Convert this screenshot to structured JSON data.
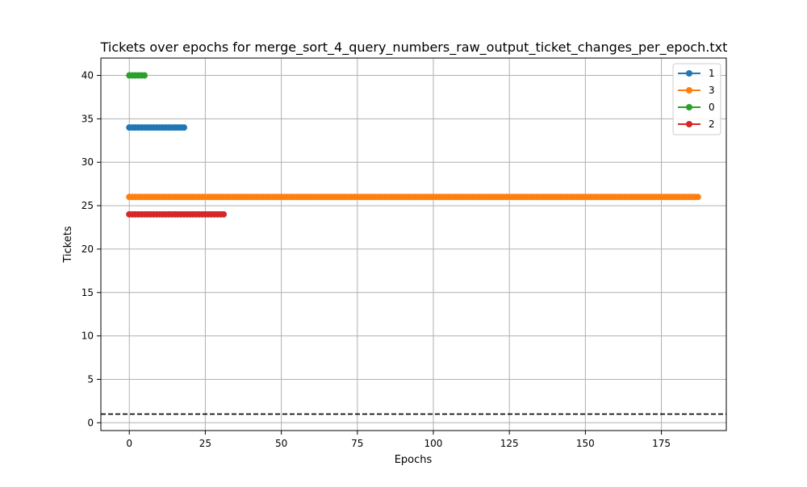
{
  "chart_data": {
    "type": "line",
    "title": "Tickets over epochs for merge_sort_4_query_numbers_raw_output_ticket_changes_per_epoch.txt",
    "xlabel": "Epochs",
    "ylabel": "Tickets",
    "xlim": [
      -9.35,
      196.35
    ],
    "ylim": [
      -0.9,
      42
    ],
    "xticks": [
      0,
      25,
      50,
      75,
      100,
      125,
      150,
      175
    ],
    "yticks": [
      0,
      5,
      10,
      15,
      20,
      25,
      30,
      35,
      40
    ],
    "grid": true,
    "legend_position": "top-right",
    "reference_line": {
      "y": 1,
      "color": "#000000",
      "style": "dashed"
    },
    "series": [
      {
        "name": "1",
        "color": "#1f77b4",
        "x_start": 0,
        "x_end": 18,
        "value": 34
      },
      {
        "name": "3",
        "color": "#ff7f0e",
        "x_start": 0,
        "x_end": 187,
        "value": 26
      },
      {
        "name": "0",
        "color": "#2ca02c",
        "x_start": 0,
        "x_end": 5,
        "value": 40
      },
      {
        "name": "2",
        "color": "#d62728",
        "x_start": 0,
        "x_end": 31,
        "value": 24
      }
    ]
  }
}
